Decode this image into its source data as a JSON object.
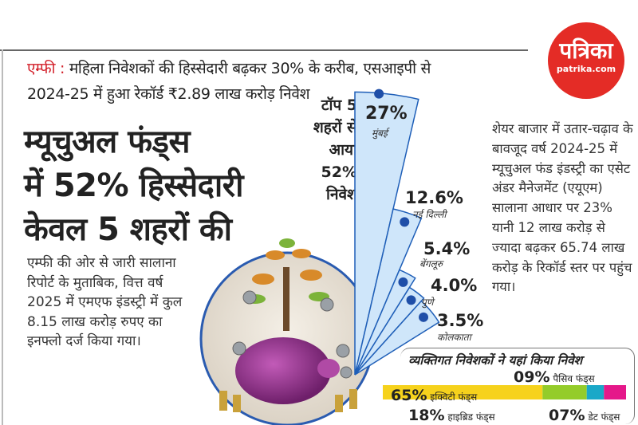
{
  "logo": {
    "text_hi": "पत्रिका",
    "text_en": "patrika.com",
    "color": "#e42c26"
  },
  "headline": {
    "prefix": "एम्फी :",
    "line1": "महिला निवेशकों की हिस्सेदारी बढ़कर 30% के करीब, एसआइपी से",
    "line2": "2024-25 में हुआ रेकॉर्ड ₹2.89 लाख करोड़ निवेश"
  },
  "title": {
    "lines": [
      "म्यूचुअल फंड्स",
      "में 52% हिस्सेदारी",
      "केवल 5 शहरों की"
    ]
  },
  "top5": {
    "lines": [
      "टॉप 5",
      "शहरों से",
      "आया",
      "52%",
      "निवेश"
    ]
  },
  "body_left": "एम्फी की ओर से जारी सालाना रिपोर्ट के मुताबिक, वित्त वर्ष 2025 में एमएफ इंडस्ट्री में कुल 8.15 लाख करोड़ रुपए का इनफ्लो दर्ज किया गया।",
  "body_right": "शेयर बाजार में उतार-चढ़ाव के बावजूद वर्ष 2024-25 में म्यूचुअल फंड इंडस्ट्री का एसेट अंडर मैनेजमेंट (एयूएम) सालाना आधार पर 23% यानी 12 लाख करोड़ से ज्यादा बढ़कर 65.74 लाख करोड़ के रिकॉर्ड स्तर पर पहुंच गया।",
  "chart_data": [
    {
      "type": "bar",
      "subtype": "radial-fan",
      "categories": [
        "मुंबई",
        "नई दिल्ली",
        "बेंगलूरु",
        "पुणे",
        "कोलकाता"
      ],
      "values": [
        27,
        12.6,
        5.4,
        4.0,
        3.5
      ],
      "labels": [
        "27%",
        "12.6%",
        "5.4%",
        "4.0%",
        "3.5%"
      ],
      "unit": "%",
      "color": "#cfe6fa",
      "stroke": "#1f5fb8"
    },
    {
      "type": "bar",
      "subtype": "stacked-horizontal",
      "title": "व्यक्तिगत निवेशकों ने यहां किया निवेश",
      "categories": [
        "इक्विटी फंड्स",
        "हाइब्रिड फंड्स",
        "डेट फंड्स",
        "पैसिव फंड्स"
      ],
      "values": [
        65,
        18,
        7,
        9
      ],
      "labels": [
        "65%",
        "18%",
        "07%",
        "09%"
      ],
      "colors": [
        "#f6d21c",
        "#94cc2a",
        "#1aa8c8",
        "#e5188a"
      ]
    }
  ]
}
